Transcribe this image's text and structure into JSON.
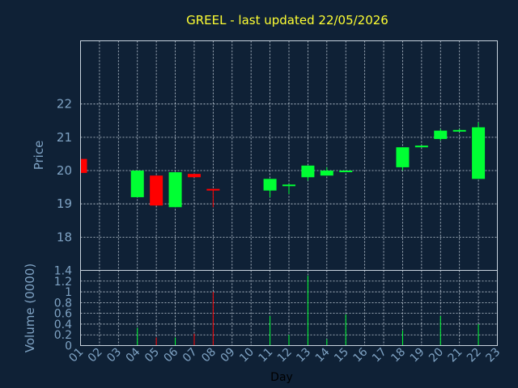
{
  "chart_data": [
    {
      "type": "candlestick",
      "title": "GREEL - last updated 22/05/2026",
      "ylabel": "Price",
      "ylim": [
        17,
        23.9
      ],
      "yticks": [
        18,
        19,
        20,
        21,
        22
      ],
      "grid": true,
      "up_color": "#00ff33",
      "down_color": "#ff0000",
      "x": [
        "01",
        "02",
        "03",
        "04",
        "05",
        "06",
        "07",
        "08",
        "09",
        "10",
        "11",
        "12",
        "13",
        "14",
        "15",
        "16",
        "17",
        "18",
        "19",
        "20",
        "21",
        "22",
        "23"
      ],
      "candles": [
        {
          "day": "01",
          "open": 20.35,
          "close": 19.93,
          "high": 20.35,
          "low": 19.93
        },
        {
          "day": "04",
          "open": 19.2,
          "close": 20.0,
          "high": 20.0,
          "low": 19.2
        },
        {
          "day": "05",
          "open": 19.85,
          "close": 18.95,
          "high": 19.85,
          "low": 18.95
        },
        {
          "day": "06",
          "open": 18.9,
          "close": 19.95,
          "high": 19.95,
          "low": 18.9
        },
        {
          "day": "07",
          "open": 19.9,
          "close": 19.8,
          "high": 19.9,
          "low": 19.8
        },
        {
          "day": "08",
          "open": 19.45,
          "close": 19.4,
          "high": 19.45,
          "low": 18.9
        },
        {
          "day": "11",
          "open": 19.4,
          "close": 19.75,
          "high": 19.75,
          "low": 19.2
        },
        {
          "day": "12",
          "open": 19.55,
          "close": 19.58,
          "high": 19.6,
          "low": 19.3
        },
        {
          "day": "13",
          "open": 19.8,
          "close": 20.15,
          "high": 20.15,
          "low": 19.7
        },
        {
          "day": "14",
          "open": 19.85,
          "close": 20.0,
          "high": 20.1,
          "low": 19.85
        },
        {
          "day": "15",
          "open": 19.98,
          "close": 20.0,
          "high": 20.0,
          "low": 19.98
        },
        {
          "day": "18",
          "open": 20.1,
          "close": 20.7,
          "high": 20.7,
          "low": 20.0
        },
        {
          "day": "19",
          "open": 20.7,
          "close": 20.75,
          "high": 20.75,
          "low": 20.7
        },
        {
          "day": "20",
          "open": 20.95,
          "close": 21.2,
          "high": 21.25,
          "low": 20.9
        },
        {
          "day": "21",
          "open": 21.2,
          "close": 21.22,
          "high": 21.25,
          "low": 21.2
        },
        {
          "day": "22",
          "open": 19.75,
          "close": 21.3,
          "high": 21.45,
          "low": 19.75
        }
      ]
    },
    {
      "type": "bar",
      "ylabel": "Volume (0000)",
      "xlabel": "Day",
      "ylim": [
        0,
        1.4
      ],
      "yticks": [
        0,
        0.2,
        0.4,
        0.6,
        0.8,
        1,
        1.2,
        1.4
      ],
      "ytick_labels": [
        "0",
        "0.2",
        "0.4",
        "0.6",
        "0.8",
        "1",
        "1.2",
        "1.4"
      ],
      "grid": true,
      "bars": [
        {
          "day": "04",
          "value": 0.33,
          "color": "#00ff33"
        },
        {
          "day": "05",
          "value": 0.15,
          "color": "#ff0000"
        },
        {
          "day": "06",
          "value": 0.15,
          "color": "#00ff33"
        },
        {
          "day": "07",
          "value": 0.22,
          "color": "#ff0000"
        },
        {
          "day": "08",
          "value": 1.0,
          "color": "#ff0000"
        },
        {
          "day": "11",
          "value": 0.55,
          "color": "#00ff33"
        },
        {
          "day": "12",
          "value": 0.2,
          "color": "#00ff33"
        },
        {
          "day": "13",
          "value": 1.3,
          "color": "#00ff33"
        },
        {
          "day": "14",
          "value": 0.12,
          "color": "#00ff33"
        },
        {
          "day": "15",
          "value": 0.58,
          "color": "#00ff33"
        },
        {
          "day": "18",
          "value": 0.28,
          "color": "#00ff33"
        },
        {
          "day": "20",
          "value": 0.55,
          "color": "#00ff33"
        },
        {
          "day": "22",
          "value": 0.4,
          "color": "#00ff33"
        }
      ]
    }
  ]
}
